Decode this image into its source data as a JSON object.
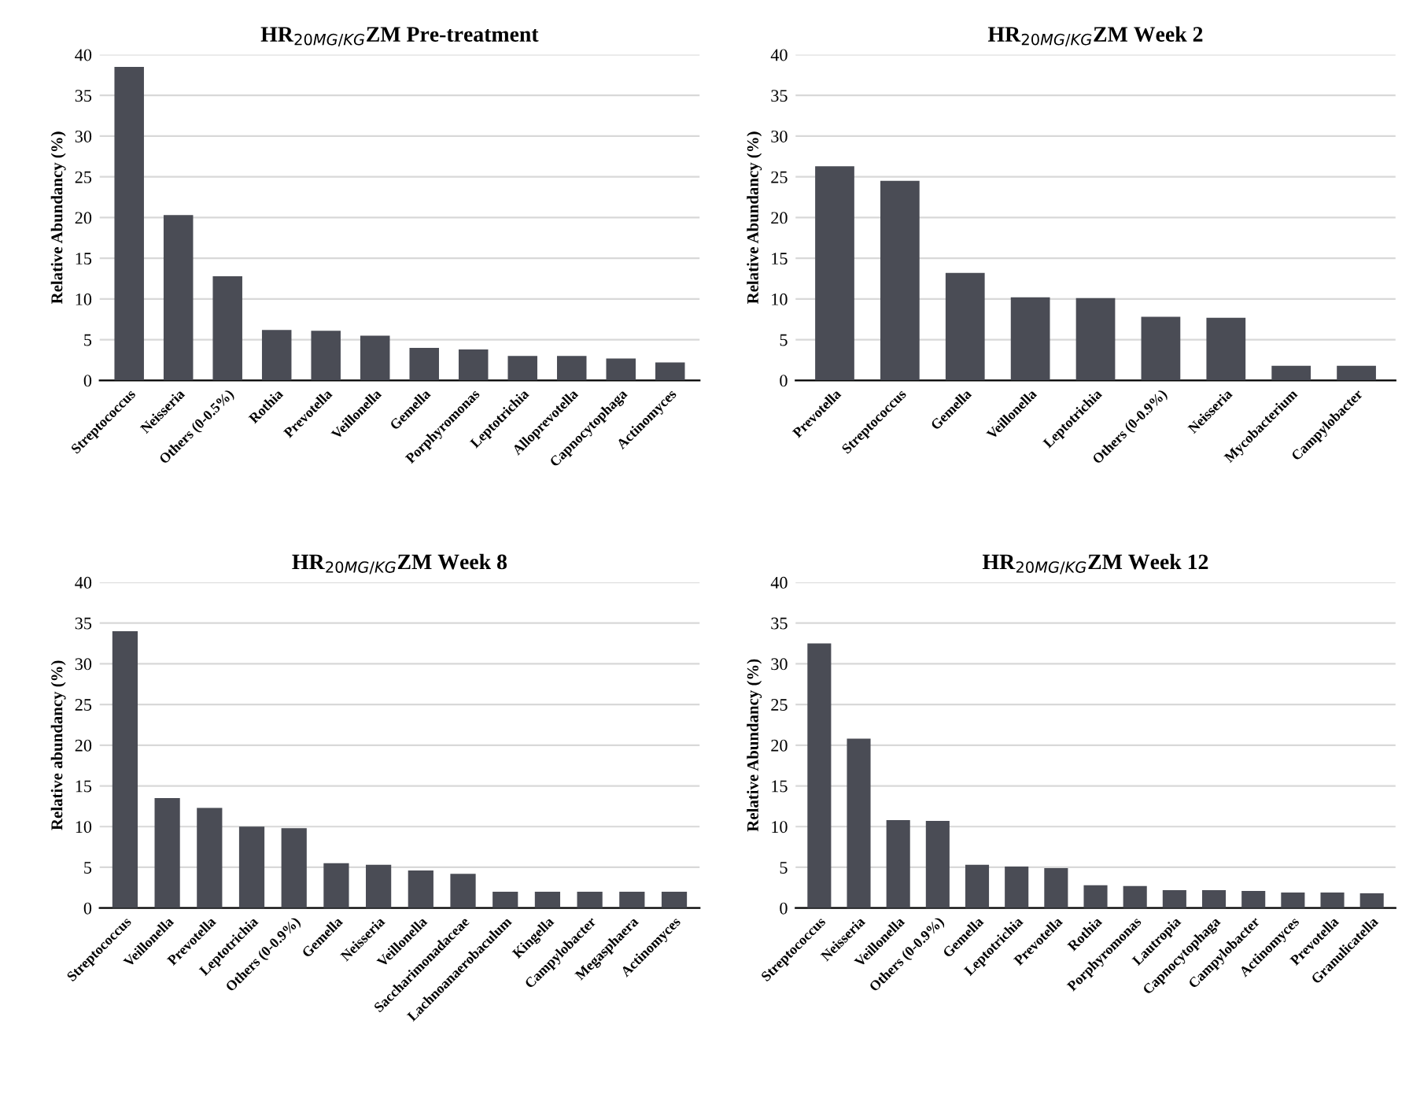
{
  "chart_data": [
    {
      "type": "bar",
      "title": "HR$_{20MG/KG}$ZM Pre-treatment",
      "ylabel": "Relative Abundancy (%)",
      "categories": [
        "Streptococcus",
        "Neisseria",
        "Others (0-0.5%)",
        "Rothia",
        "Prevotella",
        "Veillonella",
        "Gemella",
        "Porphyromonas",
        "Leptotrichia",
        "Alloprevotella",
        "Capnocytophaga",
        "Actinomyces"
      ],
      "values": [
        38.5,
        20.3,
        12.8,
        6.2,
        6.1,
        5.5,
        4.0,
        3.8,
        3.0,
        3.0,
        2.7,
        2.2
      ],
      "color": "#4a4c55",
      "ylim": [
        0,
        40
      ],
      "yticks": [
        0,
        5,
        10,
        15,
        20,
        25,
        30,
        35,
        40
      ],
      "grid": "y"
    },
    {
      "type": "bar",
      "title": "HR$_{20MG/KG}$ZM Week 2",
      "ylabel": "Relative Abundancy (%)",
      "categories": [
        "Prevotella",
        "Streptococcus",
        "Gemella",
        "Veillonella",
        "Leptotrichia",
        "Others (0-0.9%)",
        "Neisseria",
        "Mycobacterium",
        "Campylobacter"
      ],
      "values": [
        26.3,
        24.5,
        13.2,
        10.2,
        10.1,
        7.8,
        7.7,
        1.8,
        1.8
      ],
      "color": "#4a4c55",
      "ylim": [
        0,
        40
      ],
      "yticks": [
        0,
        5,
        10,
        15,
        20,
        25,
        30,
        35,
        40
      ],
      "grid": "y"
    },
    {
      "type": "bar",
      "title": "HR$_{20MG/KG}$ZM Week 8",
      "ylabel": "Relative abundancy (%)",
      "categories": [
        "Streptococcus",
        "Veillonella",
        "Prevotella",
        "Leptotrichia",
        "Others (0-0.9%)",
        "Gemella",
        "Neisseria",
        "Veillonella",
        "Saccharimonadaceae",
        "Lachnoanaerobaculum",
        "Kingella",
        "Campylobacter",
        "Megasphaera",
        "Actinomyces"
      ],
      "values": [
        34.0,
        13.5,
        12.3,
        10.0,
        9.8,
        5.5,
        5.3,
        4.6,
        4.2,
        2.0,
        2.0,
        2.0,
        2.0,
        2.0
      ],
      "color": "#4a4c55",
      "ylim": [
        0,
        40
      ],
      "yticks": [
        0,
        5,
        10,
        15,
        20,
        25,
        30,
        35,
        40
      ],
      "grid": "y"
    },
    {
      "type": "bar",
      "title": "HR$_{20MG/KG}$ZM Week 12",
      "ylabel": "Relative Abundancy (%)",
      "categories": [
        "Streptococcus",
        "Neisseria",
        "Veillonella",
        "Others (0-0.9%)",
        "Gemella",
        "Leptotrichia",
        "Prevotella",
        "Rothia",
        "Porphyromonas",
        "Lautropia",
        "Capnocytophaga",
        "Campylobacter",
        "Actinomyces",
        "Prevotella",
        "Granulicatella"
      ],
      "values": [
        32.5,
        20.8,
        10.8,
        10.7,
        5.3,
        5.1,
        4.9,
        2.8,
        2.7,
        2.2,
        2.2,
        2.1,
        1.9,
        1.9,
        1.8
      ],
      "color": "#4a4c55",
      "ylim": [
        0,
        40
      ],
      "yticks": [
        0,
        5,
        10,
        15,
        20,
        25,
        30,
        35,
        40
      ],
      "grid": "y"
    }
  ]
}
